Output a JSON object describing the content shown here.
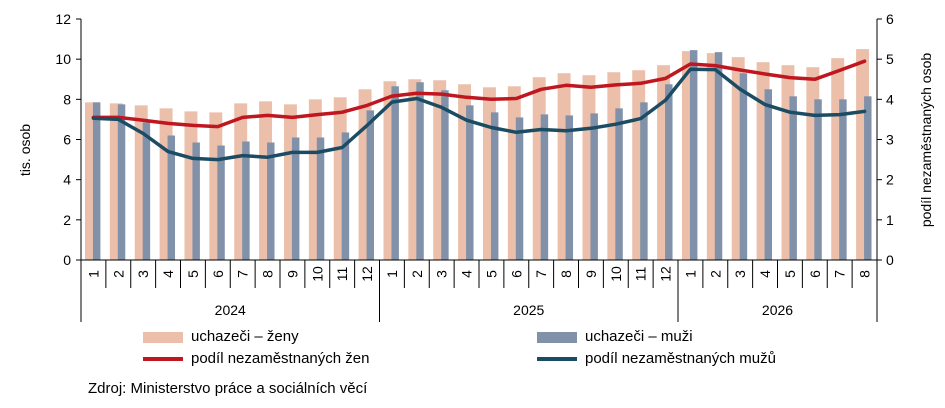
{
  "chart_data": {
    "type": "bar",
    "xlabel": "",
    "ylabel": "tis. osob",
    "ylabel_right": "podíl nezaměstnaných osob",
    "ylim": [
      0,
      12
    ],
    "yticks": [
      0,
      2,
      4,
      6,
      8,
      10,
      12
    ],
    "ylim_right": [
      0,
      6
    ],
    "yticks_right": [
      0,
      1,
      2,
      3,
      4,
      5,
      6
    ],
    "categories": [
      "1",
      "2",
      "3",
      "4",
      "5",
      "6",
      "7",
      "8",
      "9",
      "10",
      "11",
      "12",
      "1",
      "2",
      "3",
      "4",
      "5",
      "6",
      "7",
      "8",
      "9",
      "10",
      "11",
      "12",
      "1",
      "2",
      "3",
      "4",
      "5",
      "6",
      "7",
      "8"
    ],
    "years": [
      {
        "label": "2024",
        "count": 12
      },
      {
        "label": "2025",
        "count": 12
      },
      {
        "label": "2026",
        "count": 8
      }
    ],
    "series": [
      {
        "name": "uchazeči – ženy",
        "kind": "bar",
        "axis": "left",
        "color": "#ebbfaa",
        "values": [
          7.85,
          7.8,
          7.7,
          7.55,
          7.4,
          7.35,
          7.8,
          7.9,
          7.75,
          8.0,
          8.1,
          8.5,
          8.9,
          9.0,
          8.95,
          8.75,
          8.6,
          8.65,
          9.1,
          9.3,
          9.2,
          9.35,
          9.45,
          9.7,
          10.4,
          10.3,
          10.1,
          9.85,
          9.7,
          9.6,
          10.05,
          10.5
        ]
      },
      {
        "name": "uchazeči – muži",
        "kind": "bar",
        "axis": "left",
        "color": "#8191a9",
        "values": [
          7.85,
          7.75,
          6.85,
          6.2,
          5.85,
          5.7,
          5.9,
          5.85,
          6.1,
          6.1,
          6.35,
          7.45,
          8.65,
          8.85,
          8.45,
          7.7,
          7.35,
          7.1,
          7.25,
          7.2,
          7.3,
          7.55,
          7.85,
          8.75,
          10.45,
          10.35,
          9.3,
          8.5,
          8.15,
          8.0,
          8.0,
          8.15
        ]
      },
      {
        "name": "podíl nezaměstnaných žen",
        "kind": "line",
        "axis": "right",
        "color": "#c0161f",
        "values": [
          3.55,
          3.55,
          3.48,
          3.4,
          3.35,
          3.32,
          3.55,
          3.6,
          3.55,
          3.62,
          3.68,
          3.85,
          4.08,
          4.15,
          4.13,
          4.05,
          4.0,
          4.02,
          4.25,
          4.35,
          4.3,
          4.36,
          4.4,
          4.52,
          4.88,
          4.84,
          4.73,
          4.63,
          4.54,
          4.5,
          4.72,
          4.95
        ]
      },
      {
        "name": "podíl nezaměstnaných mužů",
        "kind": "line",
        "axis": "right",
        "color": "#1c4c64",
        "values": [
          3.53,
          3.5,
          3.15,
          2.7,
          2.53,
          2.5,
          2.6,
          2.56,
          2.68,
          2.68,
          2.8,
          3.35,
          3.93,
          4.02,
          3.8,
          3.48,
          3.3,
          3.18,
          3.25,
          3.22,
          3.28,
          3.38,
          3.52,
          3.98,
          4.75,
          4.74,
          4.25,
          3.87,
          3.68,
          3.6,
          3.62,
          3.7
        ]
      }
    ],
    "legend": {
      "placement": "bottom",
      "columns": 2
    },
    "source": "Zdroj: Ministerstvo práce a sociálních věcí",
    "grid": false
  }
}
